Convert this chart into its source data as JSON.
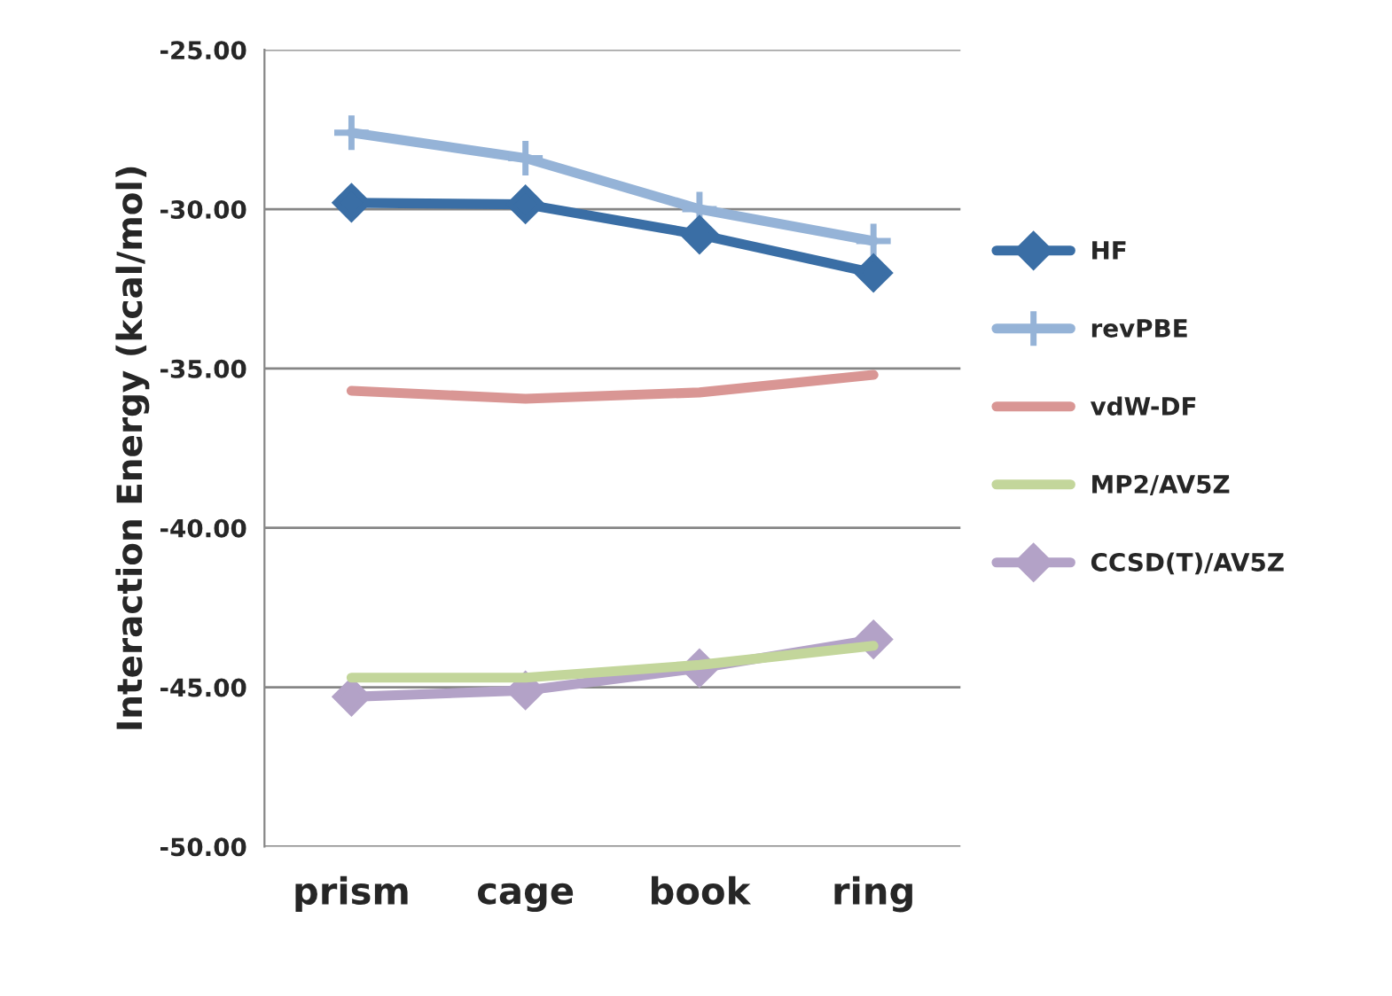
{
  "chart_data": {
    "type": "line",
    "ylabel": "Interaction Energy (kcal/mol)",
    "categories": [
      "prism",
      "cage",
      "book",
      "ring"
    ],
    "series": [
      {
        "name": "HF",
        "color": "#3a6ea5",
        "marker": "diamond",
        "values": [
          -29.8,
          -29.85,
          -30.8,
          -32.0
        ]
      },
      {
        "name": "revPBE",
        "color": "#95b3d7",
        "marker": "cross",
        "values": [
          -27.6,
          -28.4,
          -30.0,
          -31.0
        ]
      },
      {
        "name": "vdW-DF",
        "color": "#d99694",
        "marker": "none",
        "values": [
          -35.7,
          -35.95,
          -35.75,
          -35.2
        ]
      },
      {
        "name": "MP2/AV5Z",
        "color": "#c3d69b",
        "marker": "none",
        "values": [
          -44.7,
          -44.7,
          -44.3,
          -43.7
        ]
      },
      {
        "name": "CCSD(T)/AV5Z",
        "color": "#b3a2c7",
        "marker": "diamond",
        "values": [
          -45.3,
          -45.1,
          -44.4,
          -43.5
        ]
      }
    ],
    "ylim": [
      -50,
      -25
    ],
    "yticks": [
      {
        "value": -50,
        "label": "-50.00"
      },
      {
        "value": -45,
        "label": "-45.00"
      },
      {
        "value": -40,
        "label": "-40.00"
      },
      {
        "value": -35,
        "label": "-35.00"
      },
      {
        "value": -30,
        "label": "-30.00"
      },
      {
        "value": -25,
        "label": "-25.00"
      }
    ],
    "grid": "y",
    "legend": "right",
    "line_style": "solid"
  }
}
